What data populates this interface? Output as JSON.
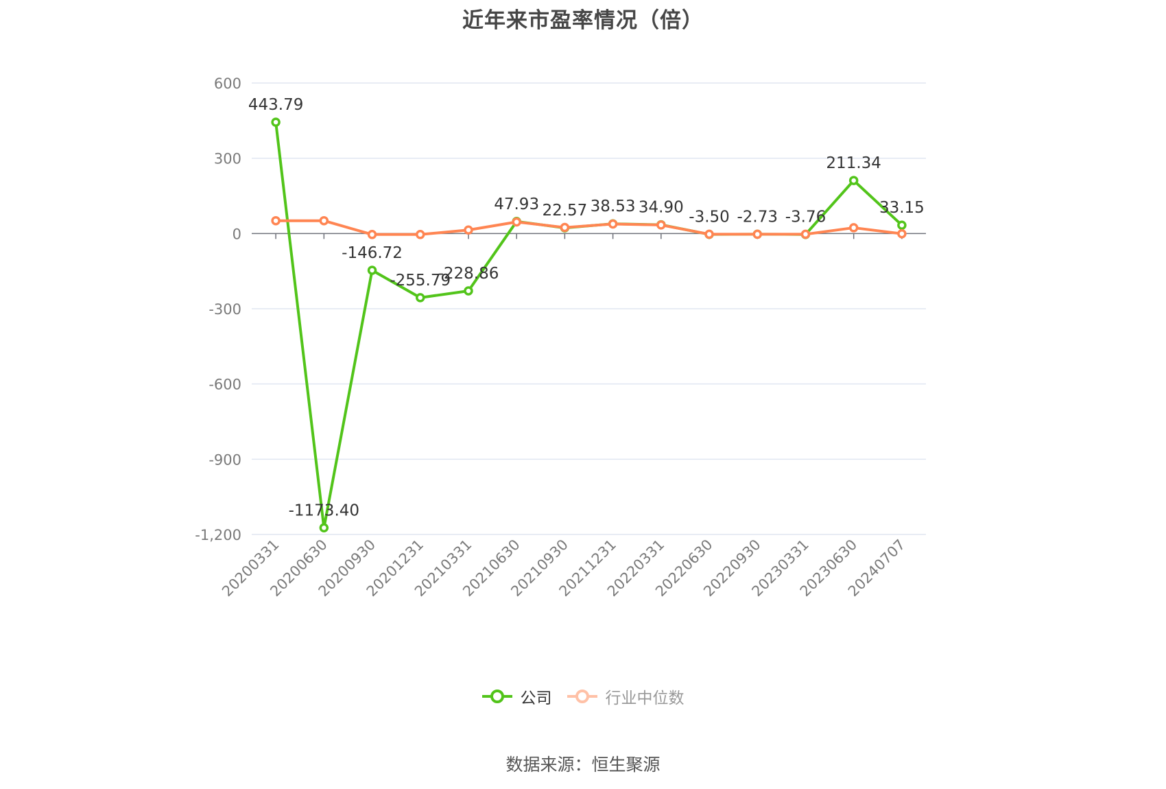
{
  "title": "近年来市盈率情况（倍）",
  "source": "数据来源：恒生聚源",
  "colors": {
    "company": "#52c41a",
    "industry": "#ff8552",
    "grid": "#e0e6f1",
    "axis": "#6e7079"
  },
  "legend": [
    {
      "label": "公司",
      "color": "#52c41a",
      "dim": false
    },
    {
      "label": "行业中位数",
      "color": "#ff8552",
      "dim": true
    }
  ],
  "chart_data": {
    "type": "line",
    "title": "近年来市盈率情况（倍）",
    "xlabel": "",
    "ylabel": "",
    "ylim": [
      -1200,
      600
    ],
    "yticks": [
      600,
      300,
      0,
      -300,
      -600,
      -900,
      -1200
    ],
    "ytick_labels": [
      "600",
      "300",
      "0",
      "-300",
      "-600",
      "-900",
      "-1,200"
    ],
    "grid": true,
    "legend_position": "bottom",
    "categories": [
      "20200331",
      "20200630",
      "20200930",
      "20201231",
      "20210331",
      "20210630",
      "20210930",
      "20211231",
      "20220331",
      "20220630",
      "20220930",
      "20230331",
      "20230630",
      "20240707"
    ],
    "series": [
      {
        "name": "公司",
        "values": [
          443.79,
          -1173.4,
          -146.72,
          -255.79,
          -228.86,
          47.93,
          22.57,
          38.53,
          34.9,
          -3.5,
          -2.73,
          -3.76,
          211.34,
          33.15
        ],
        "labels": [
          "443.79",
          "-1173.40",
          "-146.72",
          "-255.79",
          "-228.86",
          "47.93",
          "22.57",
          "38.53",
          "34.90",
          "-3.50",
          "-2.73",
          "-3.76",
          "211.34",
          "33.15"
        ]
      },
      {
        "name": "行业中位数",
        "values": [
          51,
          51,
          -4,
          -4,
          14,
          46,
          24,
          38,
          34,
          -3,
          -3,
          -3,
          23,
          -1
        ]
      }
    ]
  }
}
